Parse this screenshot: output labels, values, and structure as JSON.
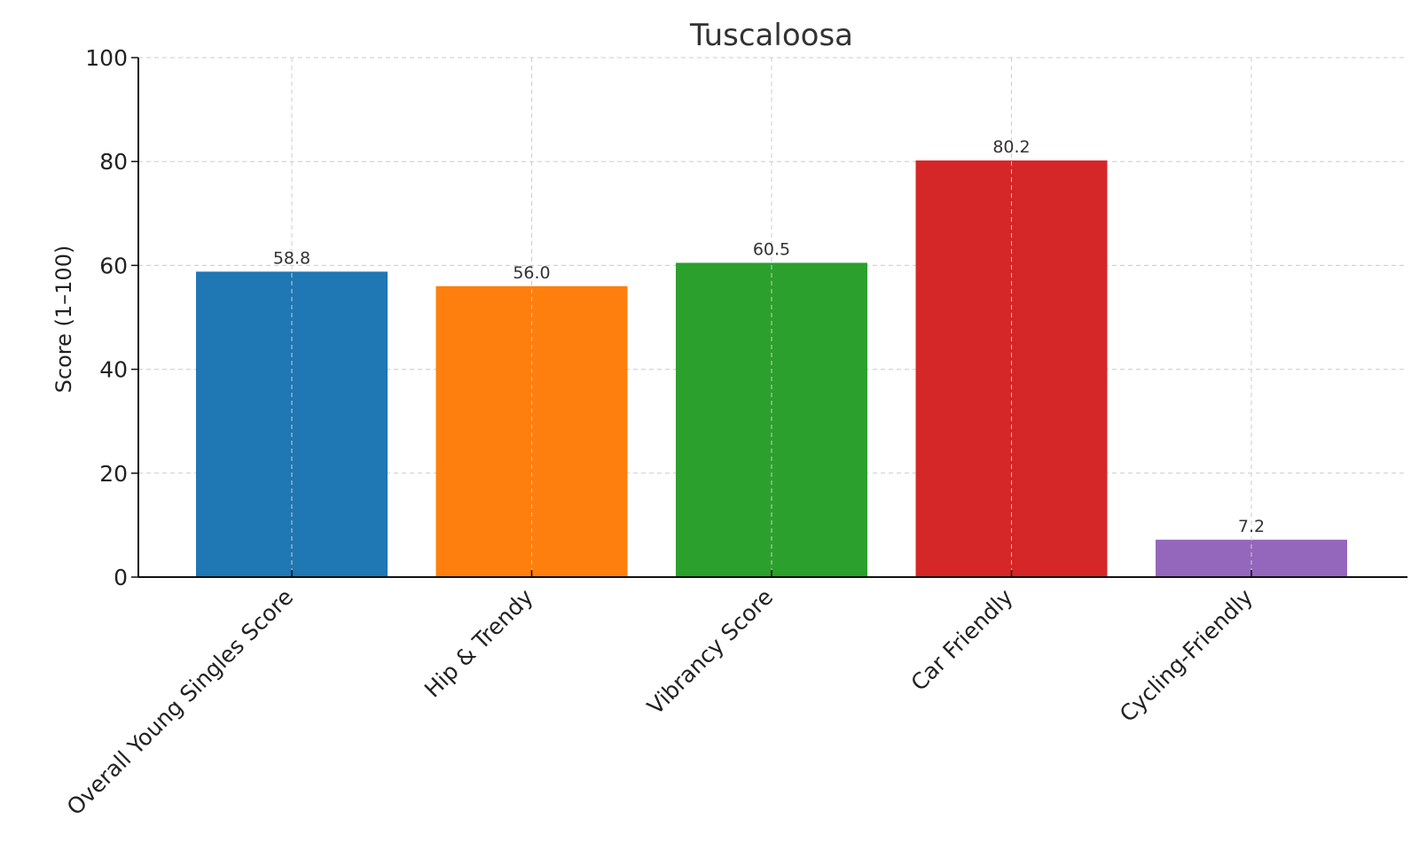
{
  "chart_data": {
    "type": "bar",
    "title": "Tuscaloosa",
    "xlabel": "",
    "ylabel": "Score (1–100)",
    "categories": [
      "Overall Young Singles Score",
      "Hip & Trendy",
      "Vibrancy Score",
      "Car Friendly",
      "Cycling-Friendly"
    ],
    "values": [
      58.8,
      56.0,
      60.5,
      80.2,
      7.2
    ],
    "value_labels": [
      "58.8",
      "56.0",
      "60.5",
      "80.2",
      "7.2"
    ],
    "colors": [
      "#1f77b4",
      "#ff7f0e",
      "#2ca02c",
      "#d62728",
      "#9467bd"
    ],
    "ylim": [
      0,
      100
    ],
    "yticks": [
      0,
      20,
      40,
      60,
      80,
      100
    ],
    "grid": true,
    "legend": "none"
  }
}
